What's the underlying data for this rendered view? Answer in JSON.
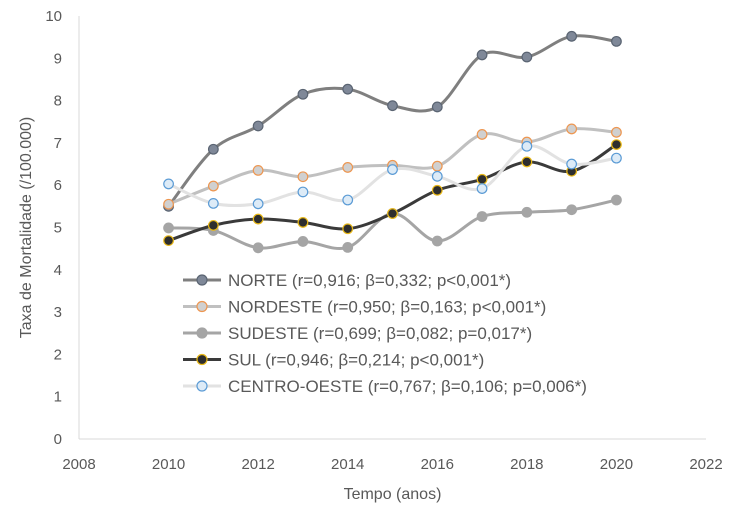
{
  "chart_data": {
    "type": "line",
    "title": "",
    "xlabel": "Tempo (anos)",
    "ylabel": "Taxa de Mortalidade (/100.000)",
    "xlim": [
      2008,
      2022
    ],
    "ylim": [
      0,
      10
    ],
    "x_ticks": [
      "2008",
      "2010",
      "2012",
      "2014",
      "2016",
      "2018",
      "2020",
      "2022"
    ],
    "y_ticks": [
      "0",
      "1",
      "2",
      "3",
      "4",
      "5",
      "6",
      "7",
      "8",
      "9",
      "10"
    ],
    "grid": false,
    "legend_position": "inside-bottom-center",
    "x": [
      2010,
      2011,
      2012,
      2013,
      2014,
      2015,
      2016,
      2017,
      2018,
      2019,
      2020
    ],
    "series": [
      {
        "name": "NORTE",
        "legend_label": "NORTE (r=0,916; β=0,332; p<0,001*)",
        "line_color": "#7f7f7f",
        "marker_fill": "#7f8898",
        "marker_stroke": "#5a6472",
        "values": [
          5.5,
          6.85,
          7.4,
          8.15,
          8.27,
          7.88,
          7.85,
          9.08,
          9.03,
          9.52,
          9.4
        ]
      },
      {
        "name": "NORDESTE",
        "legend_label": "NORDESTE (r=0,950; β=0,163; p<0,001*)",
        "line_color": "#c0c0c0",
        "marker_fill": "#d0d0d0",
        "marker_stroke": "#ed9650",
        "values": [
          5.55,
          5.98,
          6.35,
          6.2,
          6.42,
          6.47,
          6.45,
          7.2,
          7.02,
          7.33,
          7.25
        ]
      },
      {
        "name": "SUDESTE",
        "legend_label": "SUDESTE (r=0,699; β=0,082; p=0,017*)",
        "line_color": "#a5a5a5",
        "marker_fill": "#a5a5a5",
        "marker_stroke": "#a5a5a5",
        "values": [
          4.99,
          4.93,
          4.52,
          4.67,
          4.53,
          5.33,
          4.68,
          5.26,
          5.36,
          5.42,
          5.65
        ]
      },
      {
        "name": "SUL",
        "legend_label": "SUL (r=0,946; β=0,214; p<0,001*)",
        "line_color": "#3a3a3a",
        "marker_fill": "#2e2e2e",
        "marker_stroke": "#e8b818",
        "values": [
          4.69,
          5.05,
          5.2,
          5.12,
          4.97,
          5.33,
          5.88,
          6.14,
          6.55,
          6.33,
          6.96
        ]
      },
      {
        "name": "CENTRO-OESTE",
        "legend_label": "CENTRO-OESTE (r=0,767; β=0,106; p=0,006*)",
        "line_color": "#e2e2e2",
        "marker_fill": "#ddebf7",
        "marker_stroke": "#5b9bd5",
        "values": [
          6.03,
          5.57,
          5.56,
          5.84,
          5.65,
          6.37,
          6.21,
          5.92,
          6.92,
          6.5,
          6.64
        ]
      }
    ]
  }
}
